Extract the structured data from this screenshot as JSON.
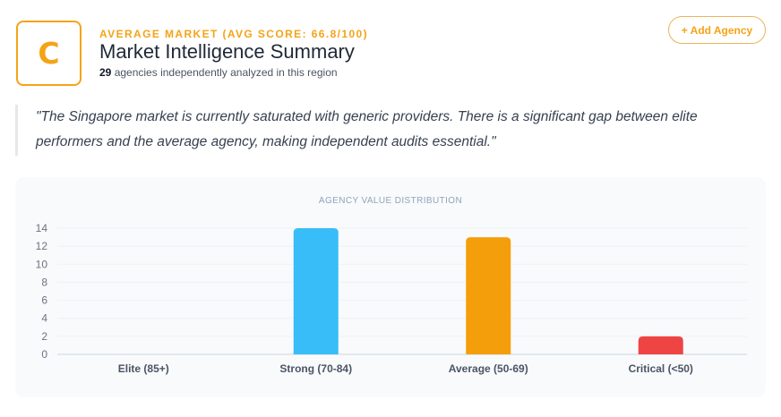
{
  "header": {
    "grade": "C",
    "eyebrow": "AVERAGE MARKET (AVG SCORE: 66.8/100)",
    "title": "Market Intelligence Summary",
    "agency_count": "29",
    "subtitle_rest": " agencies independently analyzed in this region",
    "add_button_label": "+ Add Agency"
  },
  "quote": {
    "text": "\"The Singapore market is currently saturated with generic providers. There is a significant gap between elite performers and the average agency, making independent audits essential.\""
  },
  "colors": {
    "accent": "#f5a316",
    "strong": "#38bdf8",
    "average": "#f59e0b",
    "critical": "#ef4444",
    "elite": "#22c55e"
  },
  "chart_data": {
    "type": "bar",
    "title": "AGENCY VALUE DISTRIBUTION",
    "categories": [
      "Elite (85+)",
      "Strong (70-84)",
      "Average (50-69)",
      "Critical (<50)"
    ],
    "values": [
      0,
      14,
      13,
      2
    ],
    "bar_colors": [
      "#22c55e",
      "#38bdf8",
      "#f59e0b",
      "#ef4444"
    ],
    "yticks": [
      0,
      2,
      4,
      6,
      8,
      10,
      12,
      14
    ],
    "ylim": [
      0,
      14
    ],
    "xlabel": "",
    "ylabel": "",
    "grid": true,
    "legend": "none"
  }
}
